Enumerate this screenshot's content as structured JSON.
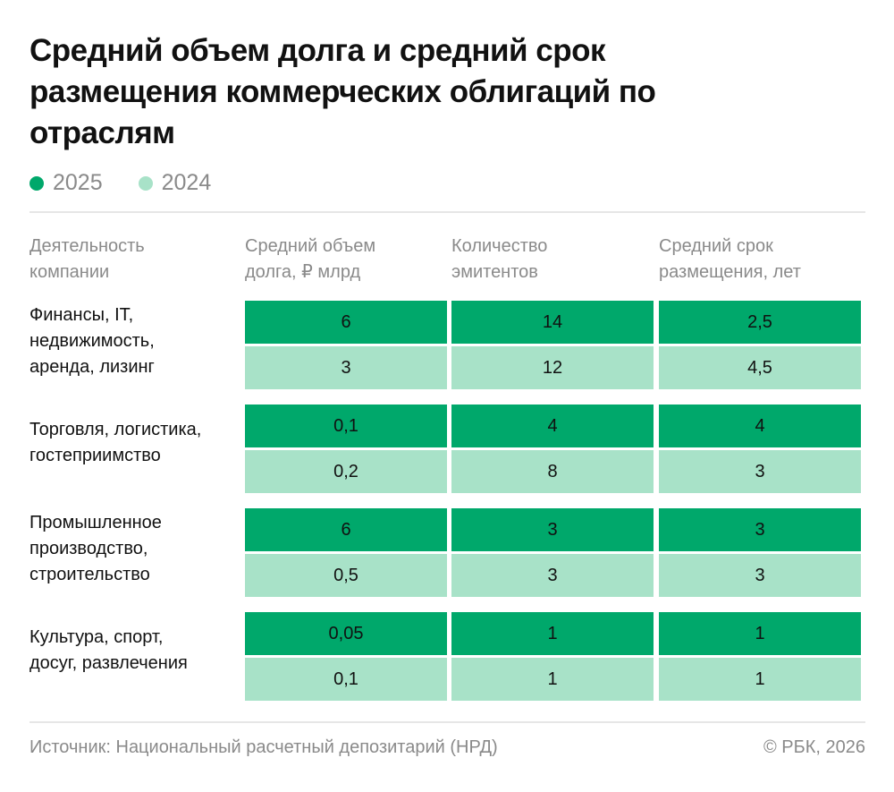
{
  "title": "Средний объем долга и средний срок размещения коммерческих облигаций по отраслям",
  "legend": [
    {
      "label": "2025",
      "color": "#00a86b"
    },
    {
      "label": "2024",
      "color": "#a8e2c8"
    }
  ],
  "chart_data": {
    "type": "table",
    "columns": [
      "Деятельность\nкомпании",
      "Средний объем\nдолга, ₽ млрд",
      "Количество\nэмитентов",
      "Средний срок\nразмещения, лет"
    ],
    "groups": [
      {
        "category": "Финансы, IT,\nнедвижимость,\nаренда, лизинг",
        "rows": [
          {
            "year": "2025",
            "values": [
              "6",
              "14",
              "2,5"
            ]
          },
          {
            "year": "2024",
            "values": [
              "3",
              "12",
              "4,5"
            ]
          }
        ]
      },
      {
        "category": "Торговля, логистика,\nгостеприимство",
        "rows": [
          {
            "year": "2025",
            "values": [
              "0,1",
              "4",
              "4"
            ]
          },
          {
            "year": "2024",
            "values": [
              "0,2",
              "8",
              "3"
            ]
          }
        ]
      },
      {
        "category": "Промышленное\nпроизводство,\nстроительство",
        "rows": [
          {
            "year": "2025",
            "values": [
              "6",
              "3",
              "3"
            ]
          },
          {
            "year": "2024",
            "values": [
              "0,5",
              "3",
              "3"
            ]
          }
        ]
      },
      {
        "category": "Культура, спорт,\nдосуг, развлечения",
        "rows": [
          {
            "year": "2025",
            "values": [
              "0,05",
              "1",
              "1"
            ]
          },
          {
            "year": "2024",
            "values": [
              "0,1",
              "1",
              "1"
            ]
          }
        ]
      }
    ]
  },
  "footer": {
    "source": "Источник: Национальный расчетный депозитарий (НРД)",
    "copyright": "© РБК, 2026"
  }
}
